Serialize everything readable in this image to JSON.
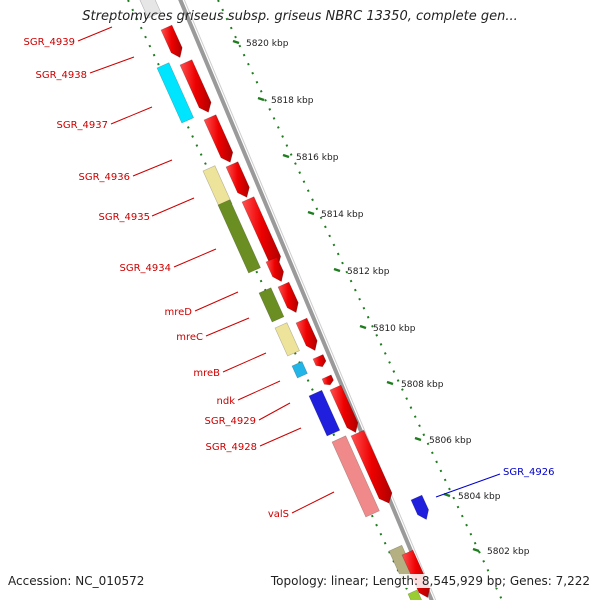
{
  "title": "Streptomyces griseus subsp. griseus NBRC 13350, complete gen...",
  "footer": {
    "accession": "Accession: NC_010572",
    "summary": "Topology: linear; Length: 8,545,929 bp; Genes: 7,222"
  },
  "colors": {
    "axis": "#8a8a8a",
    "tick": "#1e7d1e",
    "label_red": "#cc0000",
    "label_blue": "#0000cc"
  },
  "ticks": [
    "5820 kbp",
    "5818 kbp",
    "5816 kbp",
    "5814 kbp",
    "5812 kbp",
    "5810 kbp",
    "5808 kbp",
    "5806 kbp",
    "5804 kbp",
    "5802 kbp"
  ],
  "genes": [
    {
      "label": "SGR_4939",
      "color": "#cc0000"
    },
    {
      "label": "SGR_4938",
      "color": "#cc0000"
    },
    {
      "label": "SGR_4937",
      "color": "#cc0000"
    },
    {
      "label": "SGR_4936",
      "color": "#cc0000"
    },
    {
      "label": "SGR_4935",
      "color": "#cc0000"
    },
    {
      "label": "SGR_4934",
      "color": "#cc0000"
    },
    {
      "label": "mreD",
      "color": "#cc0000"
    },
    {
      "label": "mreC",
      "color": "#cc0000"
    },
    {
      "label": "mreB",
      "color": "#cc0000"
    },
    {
      "label": "ndk",
      "color": "#cc0000"
    },
    {
      "label": "SGR_4929",
      "color": "#cc0000"
    },
    {
      "label": "SGR_4928",
      "color": "#cc0000"
    },
    {
      "label": "valS",
      "color": "#cc0000"
    },
    {
      "label": "SGR_4926",
      "color": "#0000cc"
    }
  ]
}
